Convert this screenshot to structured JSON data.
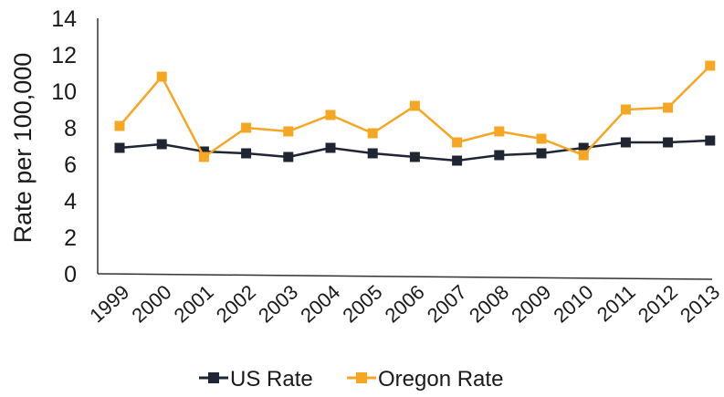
{
  "chart_data": {
    "type": "line",
    "title": "",
    "xlabel": "",
    "ylabel": "Rate per 100,000",
    "ylim": [
      0,
      14
    ],
    "yticks": [
      "0",
      "2",
      "4",
      "6",
      "8",
      "10",
      "12",
      "14"
    ],
    "categories": [
      "1999",
      "2000",
      "2001",
      "2002",
      "2003",
      "2004",
      "2005",
      "2006",
      "2007",
      "2008",
      "2009",
      "2010",
      "2011",
      "2012",
      "2013"
    ],
    "grid": false,
    "legend_position": "bottom",
    "series": [
      {
        "name": "US Rate",
        "color": "#1f2533",
        "marker": "square",
        "values": [
          6.9,
          7.1,
          6.7,
          6.6,
          6.4,
          6.9,
          6.6,
          6.4,
          6.2,
          6.5,
          6.6,
          6.9,
          7.2,
          7.2,
          7.3
        ]
      },
      {
        "name": "Oregon Rate",
        "color": "#f5a623",
        "marker": "square",
        "values": [
          8.1,
          10.8,
          6.4,
          8.0,
          7.8,
          8.7,
          7.7,
          9.2,
          7.2,
          7.8,
          7.4,
          6.5,
          9.0,
          9.1,
          11.4
        ]
      }
    ]
  }
}
